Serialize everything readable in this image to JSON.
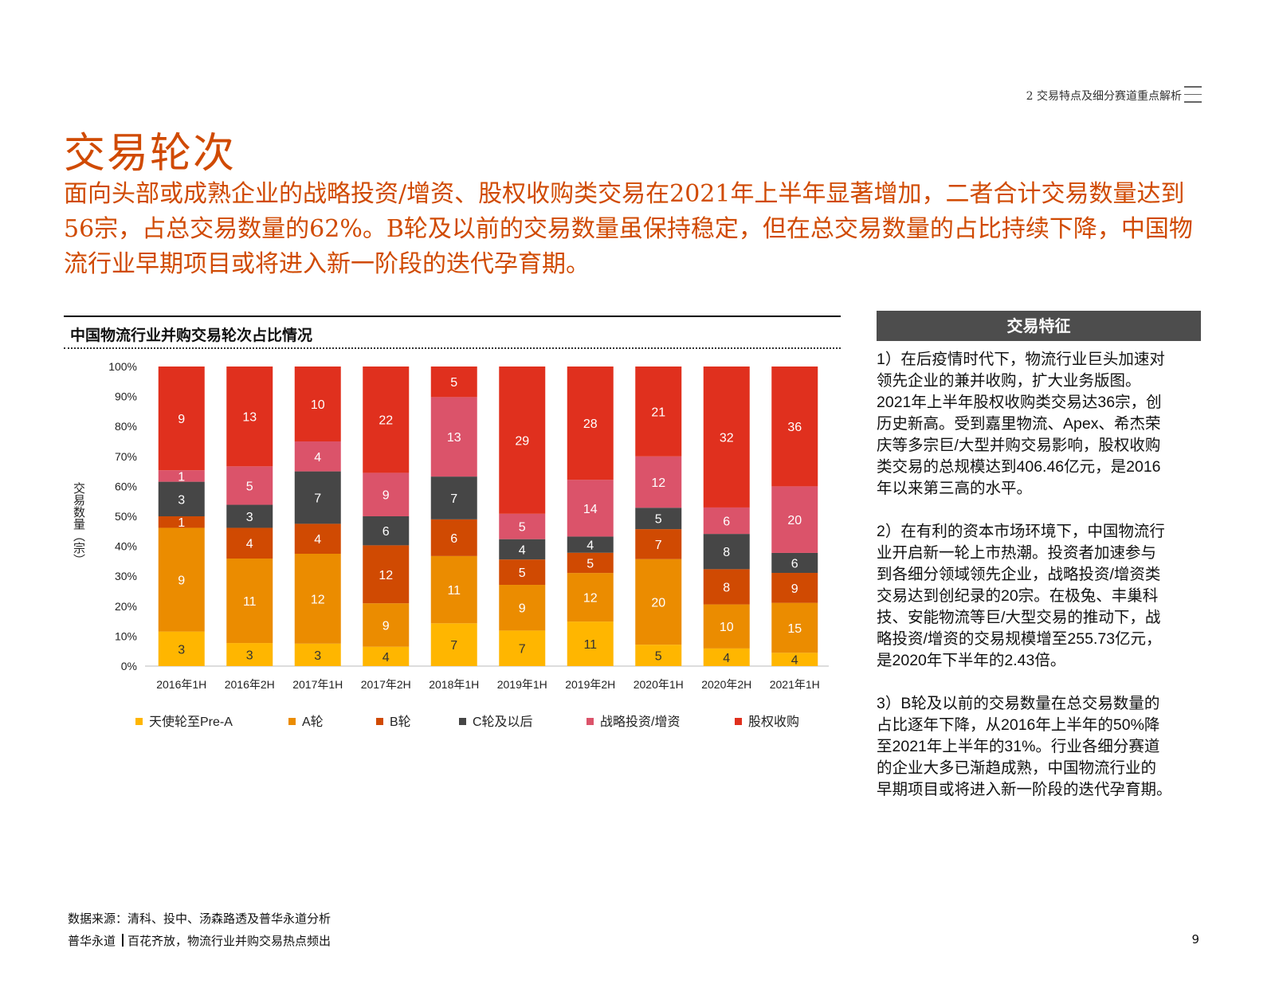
{
  "header": {
    "section_ref": "2 交易特点及细分赛道重点解析"
  },
  "title": "交易轮次",
  "subtitle": "面向头部或成熟企业的战略投资/增资、股权收购类交易在2021年上半年显著增加，二者合计交易数量达到56宗，占总交易数量的62%。B轮及以前的交易数量虽保持稳定，但在总交易数量的占比持续下降，中国物流行业早期项目或将进入新一阶段的迭代孕育期。",
  "chart_data": {
    "type": "bar",
    "stacked": "percent",
    "title": "中国物流行业并购交易轮次占比情况",
    "ylabel": "交易数量（宗）",
    "xlabel": "",
    "ylim": [
      0,
      100
    ],
    "yticks": [
      "0%",
      "10%",
      "20%",
      "30%",
      "40%",
      "50%",
      "60%",
      "70%",
      "80%",
      "90%",
      "100%"
    ],
    "categories": [
      "2016年1H",
      "2016年2H",
      "2017年1H",
      "2017年2H",
      "2018年1H",
      "2019年1H",
      "2019年2H",
      "2020年1H",
      "2020年2H",
      "2021年1H"
    ],
    "series": [
      {
        "name": "天使轮至Pre-A",
        "color": "#ffb600",
        "values": [
          3,
          3,
          3,
          4,
          7,
          7,
          11,
          5,
          4,
          4
        ]
      },
      {
        "name": "A轮",
        "color": "#eb8c00",
        "values": [
          9,
          11,
          12,
          9,
          11,
          9,
          12,
          20,
          10,
          15
        ]
      },
      {
        "name": "B轮",
        "color": "#d04a02",
        "values": [
          1,
          4,
          4,
          12,
          6,
          5,
          5,
          7,
          8,
          9
        ]
      },
      {
        "name": "C轮及以后",
        "color": "#464646",
        "values": [
          3,
          3,
          7,
          6,
          7,
          4,
          4,
          5,
          8,
          6
        ]
      },
      {
        "name": "战略投资/增资",
        "color": "#db536a",
        "values": [
          1,
          5,
          4,
          9,
          13,
          5,
          14,
          12,
          6,
          20
        ]
      },
      {
        "name": "股权收购",
        "color": "#e0301e",
        "values": [
          9,
          13,
          10,
          22,
          5,
          29,
          28,
          21,
          32,
          36
        ]
      }
    ],
    "legend_position": "bottom",
    "grid": false
  },
  "features": {
    "header": "交易特征",
    "paragraphs": [
      "1）在后疫情时代下，物流行业巨头加速对\n领先企业的兼并收购，扩大业务版图。\n2021年上半年股权收购类交易达36宗，创\n历史新高。受到嘉里物流、Apex、希杰荣\n庆等多宗巨/大型并购交易影响，股权收购\n类交易的总规模达到406.46亿元，是2016\n年以来第三高的水平。",
      "2）在有利的资本市场环境下，中国物流行\n业开启新一轮上市热潮。投资者加速参与\n到各细分领域领先企业，战略投资/增资类\n交易达到创纪录的20宗。在极兔、丰巢科\n技、安能物流等巨/大型交易的推动下，战\n略投资/增资的交易规模增至255.73亿元，\n是2020年下半年的2.43倍。",
      "3）B轮及以前的交易数量在总交易数量的\n占比逐年下降，从2016年上半年的50%降\n至2021年上半年的31%。行业各细分赛道\n的企业大多已渐趋成熟，中国物流行业的\n早期项目或将进入新一阶段的迭代孕育期。"
    ]
  },
  "footer": {
    "source": "数据来源：清科、投中、汤森路透及普华永道分析",
    "brand": "普华永道",
    "report_title": "百花齐放，物流行业并购交易热点频出",
    "page_number": "9"
  }
}
